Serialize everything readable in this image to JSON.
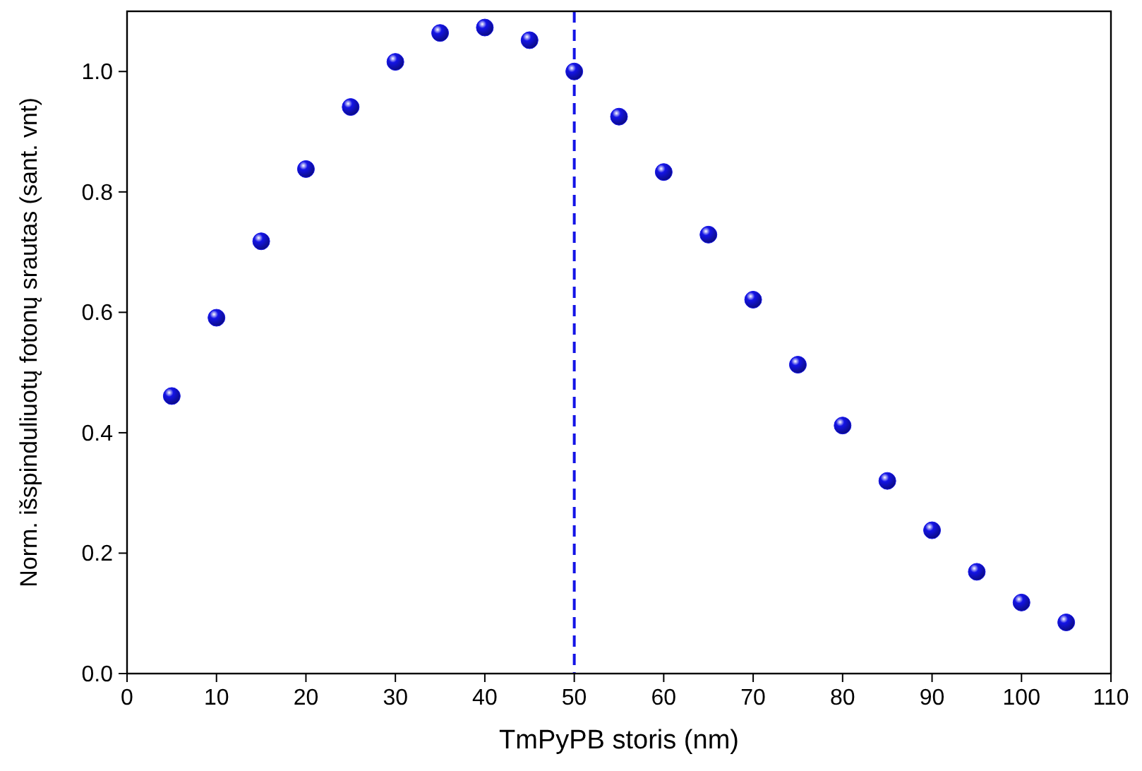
{
  "chart_data": {
    "type": "scatter",
    "xlabel": "TmPyPB storis (nm)",
    "ylabel": "Norm. išspinduliuotų fotonų srautas (sant. vnt)",
    "x": [
      5,
      10,
      15,
      20,
      25,
      30,
      35,
      40,
      45,
      50,
      55,
      60,
      65,
      70,
      75,
      80,
      85,
      90,
      95,
      100,
      105
    ],
    "series": [
      {
        "color": "#1414e6",
        "values": [
          0.461,
          0.591,
          0.718,
          0.838,
          0.941,
          1.016,
          1.064,
          1.073,
          1.052,
          1.0,
          0.925,
          0.833,
          0.729,
          0.621,
          0.513,
          0.412,
          0.32,
          0.238,
          0.169,
          0.118,
          0.085
        ]
      }
    ],
    "marker": "circle",
    "grid": false,
    "xlim": [
      0,
      110
    ],
    "xticks": [
      0,
      10,
      20,
      30,
      40,
      50,
      60,
      70,
      80,
      90,
      100,
      110
    ],
    "ylim": [
      0,
      1.1
    ],
    "yticks": [
      {
        "value": 0,
        "label": "0.0"
      },
      {
        "value": 0.2,
        "label": "0.2"
      },
      {
        "value": 0.4,
        "label": "0.4"
      },
      {
        "value": 0.6,
        "label": "0.6"
      },
      {
        "value": 0.8,
        "label": "0.8"
      },
      {
        "value": 1,
        "label": "1.0"
      }
    ],
    "ref_lines": [
      {
        "axis": "x",
        "value": 50,
        "color": "#1414e6",
        "line_style": "dashed"
      }
    ]
  }
}
